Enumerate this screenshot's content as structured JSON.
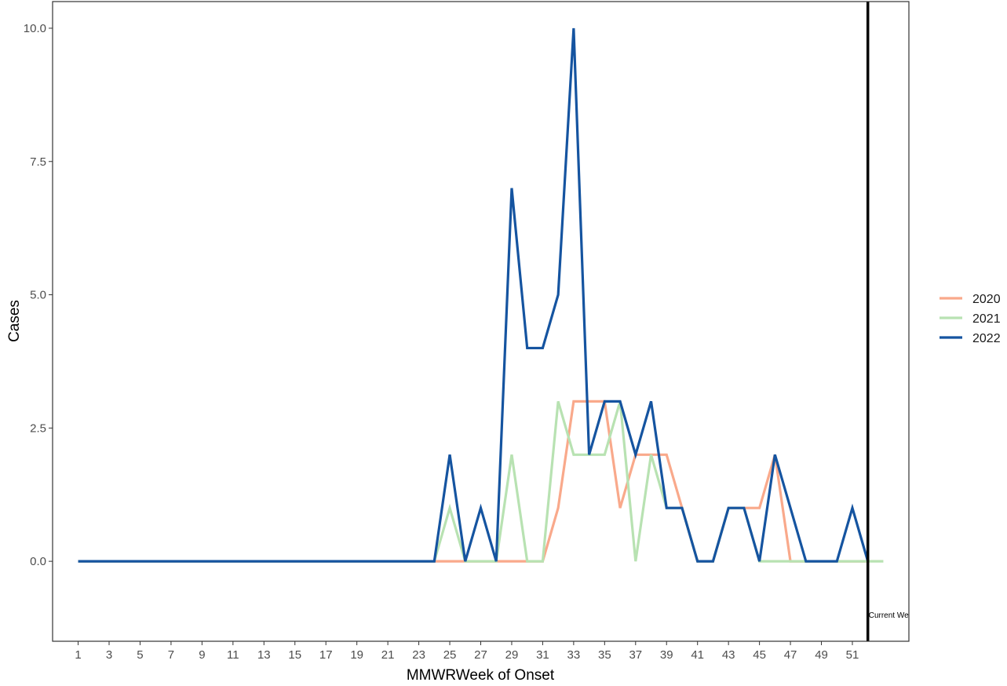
{
  "chart_data": {
    "type": "line",
    "title": "",
    "xlabel": "MMWRWeek of Onset",
    "ylabel": "Cases",
    "xlim": [
      -0.65,
      54.65
    ],
    "ylim": [
      -1.5,
      10.5
    ],
    "x_ticks": [
      1,
      3,
      5,
      7,
      9,
      11,
      13,
      15,
      17,
      19,
      21,
      23,
      25,
      27,
      29,
      31,
      33,
      35,
      37,
      39,
      41,
      43,
      45,
      47,
      49,
      51
    ],
    "y_ticks": [
      0,
      2.5,
      5,
      7.5,
      10
    ],
    "y_tick_labels": [
      "0.0",
      "2.5",
      "5.0",
      "7.5",
      "10.0"
    ],
    "grid": false,
    "legend_position": "right",
    "series": [
      {
        "name": "2020",
        "color": "#f9a98b",
        "x": [
          1,
          2,
          3,
          4,
          5,
          6,
          7,
          8,
          9,
          10,
          11,
          12,
          13,
          14,
          15,
          16,
          17,
          18,
          19,
          20,
          21,
          22,
          23,
          24,
          25,
          26,
          27,
          28,
          29,
          30,
          31,
          32,
          33,
          34,
          35,
          36,
          37,
          38,
          39,
          40,
          41,
          42,
          43,
          44,
          45,
          46,
          47,
          48,
          49,
          50,
          51,
          52
        ],
        "values": [
          0,
          0,
          0,
          0,
          0,
          0,
          0,
          0,
          0,
          0,
          0,
          0,
          0,
          0,
          0,
          0,
          0,
          0,
          0,
          0,
          0,
          0,
          0,
          0,
          0,
          0,
          0,
          0,
          0,
          0,
          0,
          1,
          3,
          3,
          3,
          1,
          2,
          2,
          2,
          1,
          0,
          0,
          1,
          1,
          1,
          2,
          0,
          0,
          0,
          0,
          0,
          0
        ]
      },
      {
        "name": "2021",
        "color": "#b8e2b2",
        "x": [
          1,
          2,
          3,
          4,
          5,
          6,
          7,
          8,
          9,
          10,
          11,
          12,
          13,
          14,
          15,
          16,
          17,
          18,
          19,
          20,
          21,
          22,
          23,
          24,
          25,
          26,
          27,
          28,
          29,
          30,
          31,
          32,
          33,
          34,
          35,
          36,
          37,
          38,
          39,
          40,
          41,
          42,
          43,
          44,
          45,
          46,
          47,
          48,
          49,
          50,
          51,
          52,
          53
        ],
        "values": [
          0,
          0,
          0,
          0,
          0,
          0,
          0,
          0,
          0,
          0,
          0,
          0,
          0,
          0,
          0,
          0,
          0,
          0,
          0,
          0,
          0,
          0,
          0,
          0,
          1,
          0,
          0,
          0,
          2,
          0,
          0,
          3,
          2,
          2,
          2,
          3,
          0,
          2,
          1,
          1,
          0,
          0,
          1,
          1,
          0,
          0,
          0,
          0,
          0,
          0,
          0,
          0,
          0
        ]
      },
      {
        "name": "2022",
        "color": "#1554a0",
        "x": [
          1,
          2,
          3,
          4,
          5,
          6,
          7,
          8,
          9,
          10,
          11,
          12,
          13,
          14,
          15,
          16,
          17,
          18,
          19,
          20,
          21,
          22,
          23,
          24,
          25,
          26,
          27,
          28,
          29,
          30,
          31,
          32,
          33,
          34,
          35,
          36,
          37,
          38,
          39,
          40,
          41,
          42,
          43,
          44,
          45,
          46,
          47,
          48,
          49,
          50,
          51,
          52
        ],
        "values": [
          0,
          0,
          0,
          0,
          0,
          0,
          0,
          0,
          0,
          0,
          0,
          0,
          0,
          0,
          0,
          0,
          0,
          0,
          0,
          0,
          0,
          0,
          0,
          0,
          2,
          0,
          1,
          0,
          7,
          4,
          4,
          5,
          10,
          2,
          3,
          3,
          2,
          3,
          1,
          1,
          0,
          0,
          1,
          1,
          0,
          2,
          1,
          0,
          0,
          0,
          1,
          0
        ]
      }
    ],
    "current_week_line": {
      "x": 52,
      "label": "Current Week",
      "color": "#000000"
    }
  }
}
